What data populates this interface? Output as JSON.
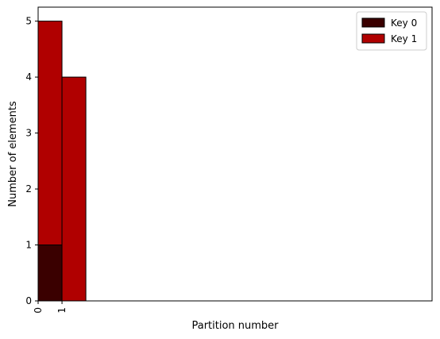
{
  "chart_data": {
    "type": "bar",
    "stacked": true,
    "categories": [
      "0",
      "1"
    ],
    "series": [
      {
        "name": "Key 0",
        "values": [
          1,
          0
        ],
        "color": "#3a0000"
      },
      {
        "name": "Key 1",
        "values": [
          4,
          4
        ],
        "color": "#b00000"
      }
    ],
    "xlabel": "Partition number",
    "ylabel": "Number of elements",
    "yticks": [
      0,
      1,
      2,
      3,
      4,
      5
    ],
    "ylim": [
      0,
      5.25
    ],
    "xlim": [
      0,
      16.5
    ],
    "grid": false,
    "legend": "top-right"
  }
}
